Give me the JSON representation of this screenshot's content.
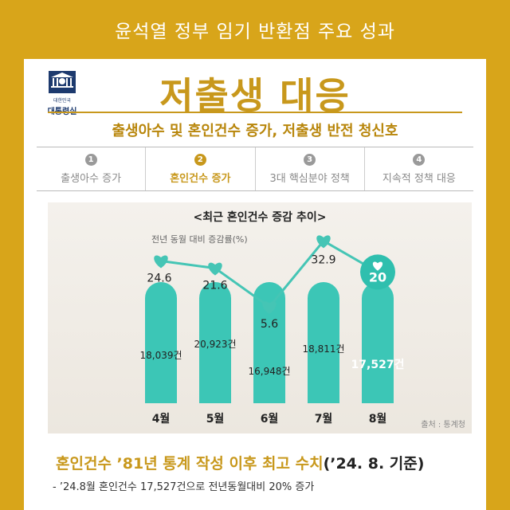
{
  "header": {
    "title": "윤석열 정부 임기 반환점 주요 성과"
  },
  "logo": {
    "small_text": "대한민국",
    "name": "대통령실"
  },
  "main": {
    "title": "저출생 대응",
    "subtitle": "출생아수 및 혼인건수 증가, 저출생 반전 청신호"
  },
  "tabs": [
    {
      "num": "1",
      "label": "출생아수 증가",
      "active": false
    },
    {
      "num": "2",
      "label": "혼인건수 증가",
      "active": true
    },
    {
      "num": "3",
      "label": "3대 핵심분야 정책",
      "active": false
    },
    {
      "num": "4",
      "label": "지속적 정책 대응",
      "active": false
    }
  ],
  "chart_data": {
    "type": "bar+line",
    "title": "<최근 혼인건수 증감 추이>",
    "line_label": "전년 동월 대비 증감률(%)",
    "categories": [
      "4월",
      "5월",
      "6월",
      "7월",
      "8월"
    ],
    "bar_values": [
      18039,
      20923,
      16948,
      18811,
      17527
    ],
    "bar_labels": [
      "18,039건",
      "20,923건",
      "16,948건",
      "18,811건",
      "17,527건"
    ],
    "line_values": [
      24.6,
      21.6,
      5.6,
      32.9,
      20
    ],
    "line_labels": [
      "24.6",
      "21.6",
      "5.6",
      "32.9",
      "20"
    ],
    "highlight_index": 4,
    "source": "출처 : 통계청",
    "colors": {
      "bar": "#3cc6b6",
      "line": "#45c5b5",
      "highlight": "#2fbfae"
    }
  },
  "footer": {
    "headline": "혼인건수 ’81년 통계 작성 이후 최고 수치",
    "headline_ref": "(’24. 8. 기준)",
    "detail": "- ’24.8월 혼인건수 17,527건으로 전년동월대비 20% 증가"
  }
}
